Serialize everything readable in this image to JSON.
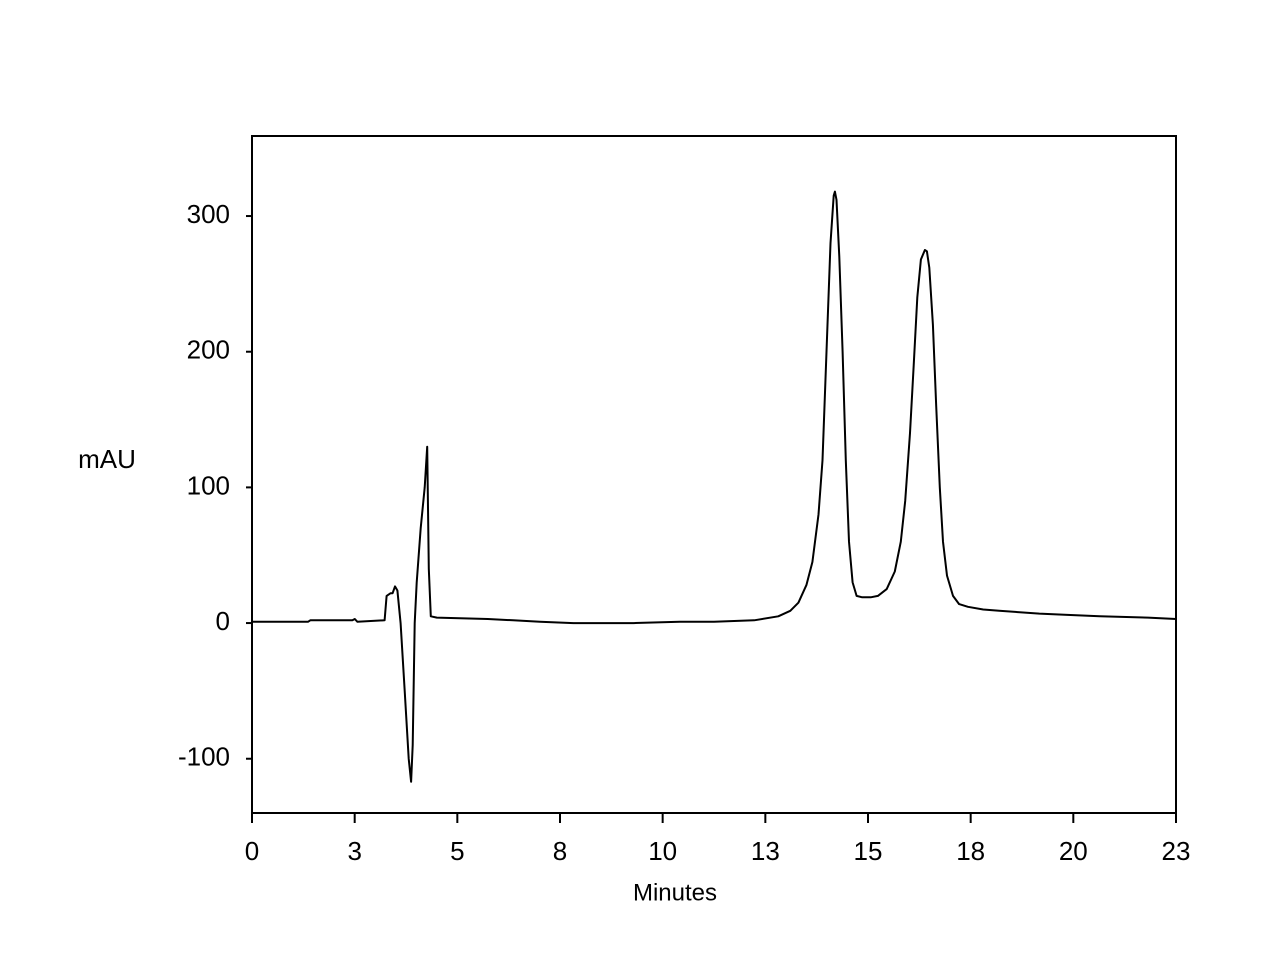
{
  "chart_data": {
    "type": "line",
    "x_label": "Minutes",
    "y_label": "mAU",
    "xlim": [
      0,
      23
    ],
    "ylim": [
      -140,
      359
    ],
    "xticks": [
      0,
      {
        "value": 2.556,
        "label": "3"
      },
      {
        "value": 5.111,
        "label": "5"
      },
      {
        "value": 7.667,
        "label": "8"
      },
      {
        "value": 10.222,
        "label": "10"
      },
      {
        "value": 12.778,
        "label": "13"
      },
      {
        "value": 15.333,
        "label": "15"
      },
      {
        "value": 17.889,
        "label": "18"
      },
      {
        "value": 20.444,
        "label": "20"
      },
      23
    ],
    "yticks": [
      -100,
      0,
      100,
      200,
      300
    ],
    "series": [
      {
        "color": "#000000",
        "x": [
          0,
          1.4,
          1.45,
          2.2,
          2.5,
          2.56,
          2.62,
          3.3,
          3.35,
          3.45,
          3.5,
          3.56,
          3.62,
          3.7,
          3.8,
          3.9,
          3.96,
          4.0,
          4.05,
          4.1,
          4.2,
          4.3,
          4.36,
          4.4,
          4.45,
          4.6,
          5.87,
          6.5,
          7.17,
          8,
          9.5,
          10.65,
          11.5,
          12.5,
          13.1,
          13.4,
          13.6,
          13.8,
          13.95,
          14.1,
          14.2,
          14.3,
          14.4,
          14.48,
          14.51,
          14.55,
          14.62,
          14.7,
          14.78,
          14.86,
          14.95,
          15.05,
          15.19,
          15.4,
          15.58,
          15.8,
          16.0,
          16.15,
          16.26,
          16.38,
          16.47,
          16.56,
          16.65,
          16.75,
          16.8,
          16.86,
          16.95,
          17.03,
          17.12,
          17.2,
          17.3,
          17.45,
          17.6,
          17.82,
          18.2,
          18.6,
          19.6,
          20.3,
          21.1,
          22.3,
          23
        ],
        "values": [
          1,
          1,
          2,
          2,
          2,
          3,
          1,
          2,
          20,
          22,
          22,
          27,
          24,
          0,
          -50,
          -100,
          -117,
          -90,
          0,
          30,
          70,
          100,
          130,
          40,
          5,
          4,
          3,
          2,
          1,
          0,
          0,
          1,
          1,
          2,
          5,
          9,
          15,
          28,
          45,
          80,
          120,
          200,
          280,
          315,
          318,
          312,
          270,
          200,
          120,
          60,
          30,
          20,
          19,
          19,
          20,
          25,
          38,
          60,
          90,
          140,
          190,
          240,
          268,
          275,
          274,
          262,
          220,
          160,
          100,
          60,
          35,
          20,
          14,
          12,
          10,
          9,
          7,
          6,
          5,
          4,
          3
        ]
      }
    ]
  }
}
